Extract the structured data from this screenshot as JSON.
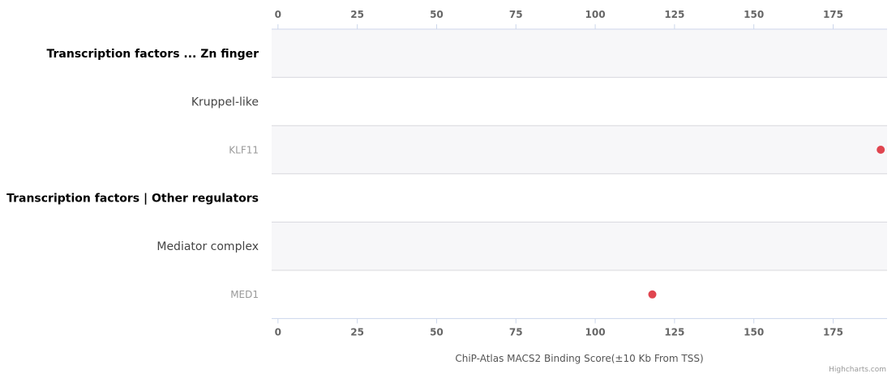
{
  "chart_data": {
    "type": "scatter",
    "orientation": "horizontal-categories",
    "categories": [
      {
        "label": "Transcription factors ... Zn finger",
        "level": "group",
        "band": true
      },
      {
        "label": "Kruppel-like",
        "level": "family",
        "band": false
      },
      {
        "label": "KLF11",
        "level": "gene",
        "band": true
      },
      {
        "label": "Transcription factors | Other regulators",
        "level": "group",
        "band": false
      },
      {
        "label": "Mediator complex",
        "level": "family",
        "band": true
      },
      {
        "label": "MED1",
        "level": "gene",
        "band": false
      }
    ],
    "points": [
      {
        "category": "KLF11",
        "value": 190
      },
      {
        "category": "MED1",
        "value": 118
      }
    ],
    "x_ticks": [
      0,
      25,
      50,
      75,
      100,
      125,
      150,
      175
    ],
    "xlim": [
      -2,
      192
    ],
    "xlabel": "ChiP-Atlas MACS2 Binding Score(±10 Kb From TSS)",
    "grid": false
  },
  "colors": {
    "point": "#e0454f",
    "band": "#f7f7f9",
    "row_line": "#d8d8de",
    "axis_line": "#ccd6eb",
    "tick_label": "#666666",
    "group_label": "#000000",
    "family_label": "#444444",
    "gene_label": "#999999",
    "axis_title": "#555555",
    "credit": "#999999"
  },
  "credit": "Highcharts.com"
}
